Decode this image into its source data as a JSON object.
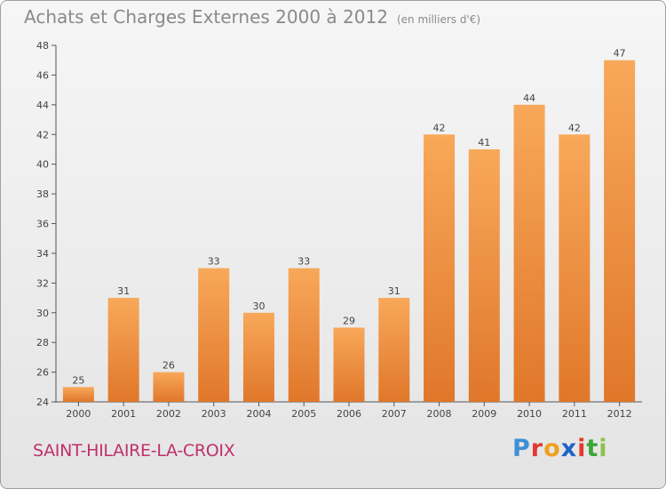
{
  "title": "Achats et Charges Externes 2000 à 2012",
  "unit": "(en milliers d'€)",
  "commune": "SAINT-HILAIRE-LA-CROIX",
  "brand": {
    "letters": [
      {
        "ch": "P",
        "color": "#3d8fd6"
      },
      {
        "ch": "r",
        "color": "#e03a2f"
      },
      {
        "ch": "o",
        "color": "#f0a020"
      },
      {
        "ch": "x",
        "color": "#1e63c8"
      },
      {
        "ch": "i",
        "color": "#e23b2c"
      },
      {
        "ch": "t",
        "color": "#3aa637"
      },
      {
        "ch": "i",
        "color": "#8bc34a"
      }
    ]
  },
  "colors": {
    "bar_light": "#f8a85a",
    "bar_dark": "#e0772a",
    "axis": "#555555",
    "text": "#444444"
  },
  "chart_data": {
    "type": "bar",
    "categories": [
      "2000",
      "2001",
      "2002",
      "2003",
      "2004",
      "2005",
      "2006",
      "2007",
      "2008",
      "2009",
      "2010",
      "2011",
      "2012"
    ],
    "values": [
      25,
      31,
      26,
      33,
      30,
      33,
      29,
      31,
      42,
      41,
      44,
      42,
      47
    ],
    "ylim": [
      24,
      48
    ],
    "yticks": [
      24,
      26,
      28,
      30,
      32,
      34,
      36,
      38,
      40,
      42,
      44,
      46,
      48
    ],
    "grid": false,
    "data_labels": true
  }
}
